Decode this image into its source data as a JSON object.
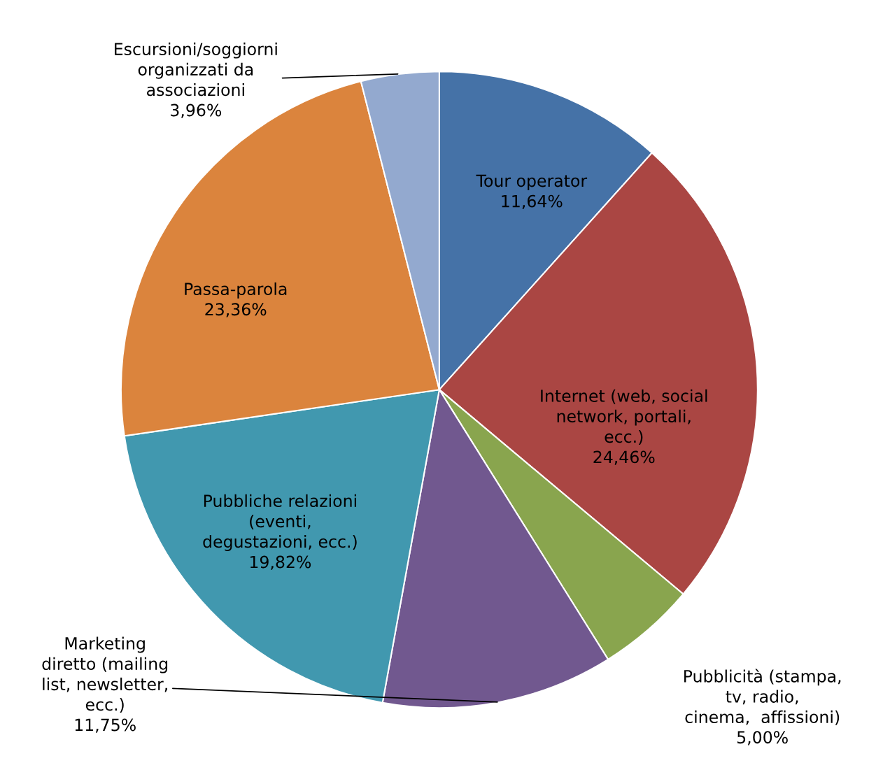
{
  "chart_data": {
    "type": "pie",
    "categories": [
      "Tour operator",
      "Internet (web, social\nnetwork, portali,\necc.)",
      "Pubblicità (stampa,\ntv, radio,\ncinema,  affissioni)",
      "Marketing\ndiretto (mailing\nlist, newsletter,\necc.)",
      "Pubbliche relazioni\n(eventi,\ndegustazioni, ecc.)",
      "Passa-parola",
      "Escursioni/soggiorni\norganizzati da\nassociazioni"
    ],
    "values": [
      11.64,
      24.46,
      5.0,
      11.75,
      19.82,
      23.36,
      3.96
    ],
    "value_labels": [
      "11,64%",
      "24,46%",
      "5,00%",
      "11,75%",
      "19,82%",
      "23,36%",
      "3,96%"
    ],
    "colors": [
      "#4572a7",
      "#aa4643",
      "#89a54e",
      "#71588f",
      "#4198af",
      "#db843d",
      "#93a9cf"
    ],
    "legend": false
  }
}
